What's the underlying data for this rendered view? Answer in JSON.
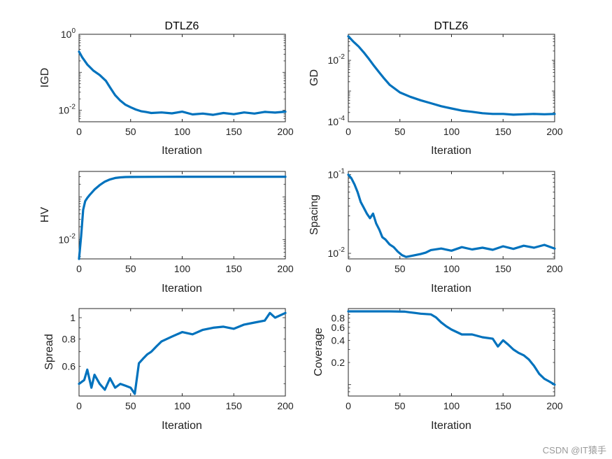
{
  "colors": {
    "line": "#0072BD",
    "axis": "#262626",
    "background": "#ffffff",
    "watermark": "#9a9a9a"
  },
  "watermark": "CSDN @IT猿手",
  "chart_data": [
    {
      "id": "igd",
      "type": "line",
      "title": "DTLZ6",
      "xlabel": "Iteration",
      "ylabel": "IGD",
      "yscale": "log",
      "xlim": [
        0,
        200
      ],
      "ylim": [
        0.005,
        1
      ],
      "xticks": [
        0,
        50,
        100,
        150,
        200
      ],
      "yticks": [
        {
          "value": 0.01,
          "base": "10",
          "exp": "-2"
        },
        {
          "value": 1,
          "base": "10",
          "exp": "0"
        }
      ],
      "x": [
        0,
        3,
        8,
        14,
        20,
        26,
        30,
        35,
        40,
        45,
        50,
        55,
        60,
        65,
        70,
        80,
        90,
        100,
        110,
        120,
        130,
        140,
        150,
        160,
        170,
        180,
        190,
        200
      ],
      "y": [
        0.35,
        0.25,
        0.16,
        0.11,
        0.085,
        0.06,
        0.04,
        0.025,
        0.018,
        0.014,
        0.012,
        0.0105,
        0.0095,
        0.009,
        0.0085,
        0.0088,
        0.0083,
        0.0092,
        0.0078,
        0.0082,
        0.0076,
        0.0085,
        0.0079,
        0.0088,
        0.0082,
        0.0091,
        0.0087,
        0.0092
      ]
    },
    {
      "id": "gd",
      "type": "line",
      "title": "DTLZ6",
      "xlabel": "Iteration",
      "ylabel": "GD",
      "yscale": "log",
      "xlim": [
        0,
        200
      ],
      "ylim": [
        0.0001,
        0.07
      ],
      "xticks": [
        0,
        50,
        100,
        150,
        200
      ],
      "yticks": [
        {
          "value": 0.0001,
          "base": "10",
          "exp": "-4"
        },
        {
          "value": 0.01,
          "base": "10",
          "exp": "-2"
        }
      ],
      "x": [
        0,
        5,
        10,
        15,
        20,
        25,
        30,
        35,
        40,
        50,
        60,
        70,
        80,
        90,
        100,
        110,
        120,
        130,
        140,
        150,
        160,
        170,
        180,
        190,
        200
      ],
      "y": [
        0.06,
        0.04,
        0.028,
        0.018,
        0.011,
        0.0065,
        0.004,
        0.0025,
        0.0016,
        0.0009,
        0.00065,
        0.0005,
        0.0004,
        0.00032,
        0.00027,
        0.00023,
        0.00021,
        0.00019,
        0.00018,
        0.00018,
        0.00017,
        0.000175,
        0.00018,
        0.000175,
        0.00018
      ]
    },
    {
      "id": "hv",
      "type": "line",
      "title": "",
      "xlabel": "Iteration",
      "ylabel": "HV",
      "yscale": "log",
      "xlim": [
        0,
        200
      ],
      "ylim": [
        0.0035,
        0.4
      ],
      "xticks": [
        0,
        50,
        100,
        150,
        200
      ],
      "yticks": [
        {
          "value": 0.01,
          "base": "10",
          "exp": "-2"
        }
      ],
      "x": [
        0,
        2,
        4,
        6,
        8,
        10,
        15,
        20,
        25,
        30,
        35,
        40,
        45,
        50,
        60,
        80,
        100,
        120,
        140,
        160,
        180,
        200
      ],
      "y": [
        0.0035,
        0.012,
        0.05,
        0.08,
        0.095,
        0.11,
        0.15,
        0.19,
        0.23,
        0.26,
        0.28,
        0.29,
        0.295,
        0.297,
        0.298,
        0.299,
        0.3,
        0.3,
        0.3,
        0.3,
        0.3,
        0.3
      ]
    },
    {
      "id": "spacing",
      "type": "line",
      "title": "",
      "xlabel": "Iteration",
      "ylabel": "Spacing",
      "yscale": "log",
      "xlim": [
        0,
        200
      ],
      "ylim": [
        0.0085,
        0.11
      ],
      "xticks": [
        0,
        50,
        100,
        150,
        200
      ],
      "yticks": [
        {
          "value": 0.01,
          "base": "10",
          "exp": "-2"
        },
        {
          "value": 0.1,
          "base": "10",
          "exp": "-1"
        }
      ],
      "x": [
        0,
        3,
        6,
        9,
        12,
        15,
        18,
        21,
        24,
        27,
        30,
        33,
        36,
        40,
        44,
        48,
        52,
        56,
        60,
        65,
        70,
        75,
        80,
        90,
        100,
        110,
        120,
        130,
        140,
        150,
        160,
        170,
        180,
        190,
        200
      ],
      "y": [
        0.1,
        0.09,
        0.075,
        0.06,
        0.045,
        0.038,
        0.032,
        0.028,
        0.032,
        0.024,
        0.02,
        0.016,
        0.015,
        0.013,
        0.012,
        0.0105,
        0.0095,
        0.009,
        0.0092,
        0.0095,
        0.0098,
        0.0102,
        0.011,
        0.0115,
        0.0108,
        0.012,
        0.0112,
        0.0118,
        0.0111,
        0.0123,
        0.0114,
        0.0125,
        0.0118,
        0.0128,
        0.0115
      ]
    },
    {
      "id": "spread",
      "type": "line",
      "title": "",
      "xlabel": "Iteration",
      "ylabel": "Spread",
      "yscale": "log",
      "xlim": [
        0,
        200
      ],
      "ylim": [
        0.44,
        1.1
      ],
      "xticks": [
        0,
        50,
        100,
        150,
        200
      ],
      "yticks": [
        {
          "value": 0.6,
          "label": "0.6"
        },
        {
          "value": 0.8,
          "label": "0.8"
        },
        {
          "value": 1,
          "label": "1"
        }
      ],
      "x": [
        0,
        5,
        8,
        12,
        15,
        20,
        25,
        30,
        35,
        40,
        45,
        50,
        54,
        58,
        62,
        66,
        70,
        75,
        80,
        90,
        100,
        110,
        120,
        130,
        140,
        150,
        160,
        170,
        180,
        185,
        190,
        200
      ],
      "y": [
        0.5,
        0.52,
        0.58,
        0.48,
        0.55,
        0.5,
        0.47,
        0.53,
        0.48,
        0.5,
        0.49,
        0.48,
        0.45,
        0.62,
        0.65,
        0.68,
        0.7,
        0.74,
        0.78,
        0.82,
        0.86,
        0.84,
        0.88,
        0.9,
        0.91,
        0.89,
        0.93,
        0.95,
        0.97,
        1.05,
        1.0,
        1.05
      ]
    },
    {
      "id": "coverage",
      "type": "line",
      "title": "",
      "xlabel": "Iteration",
      "ylabel": "Coverage",
      "yscale": "log",
      "xlim": [
        0,
        200
      ],
      "ylim": [
        0.07,
        1.08
      ],
      "xticks": [
        0,
        50,
        100,
        150,
        200
      ],
      "yticks": [
        {
          "value": 0.2,
          "label": "0.2"
        },
        {
          "value": 0.4,
          "label": "0.4"
        },
        {
          "value": 0.6,
          "label": "0.6"
        },
        {
          "value": 0.8,
          "label": "0.8"
        }
      ],
      "x": [
        0,
        20,
        40,
        55,
        60,
        65,
        70,
        80,
        85,
        90,
        95,
        100,
        110,
        120,
        130,
        140,
        145,
        150,
        155,
        160,
        165,
        170,
        175,
        180,
        185,
        190,
        195,
        200
      ],
      "y": [
        0.99,
        0.99,
        0.99,
        0.98,
        0.96,
        0.94,
        0.92,
        0.9,
        0.82,
        0.7,
        0.62,
        0.56,
        0.48,
        0.48,
        0.44,
        0.42,
        0.33,
        0.4,
        0.35,
        0.3,
        0.27,
        0.25,
        0.22,
        0.18,
        0.14,
        0.12,
        0.11,
        0.1
      ]
    }
  ]
}
